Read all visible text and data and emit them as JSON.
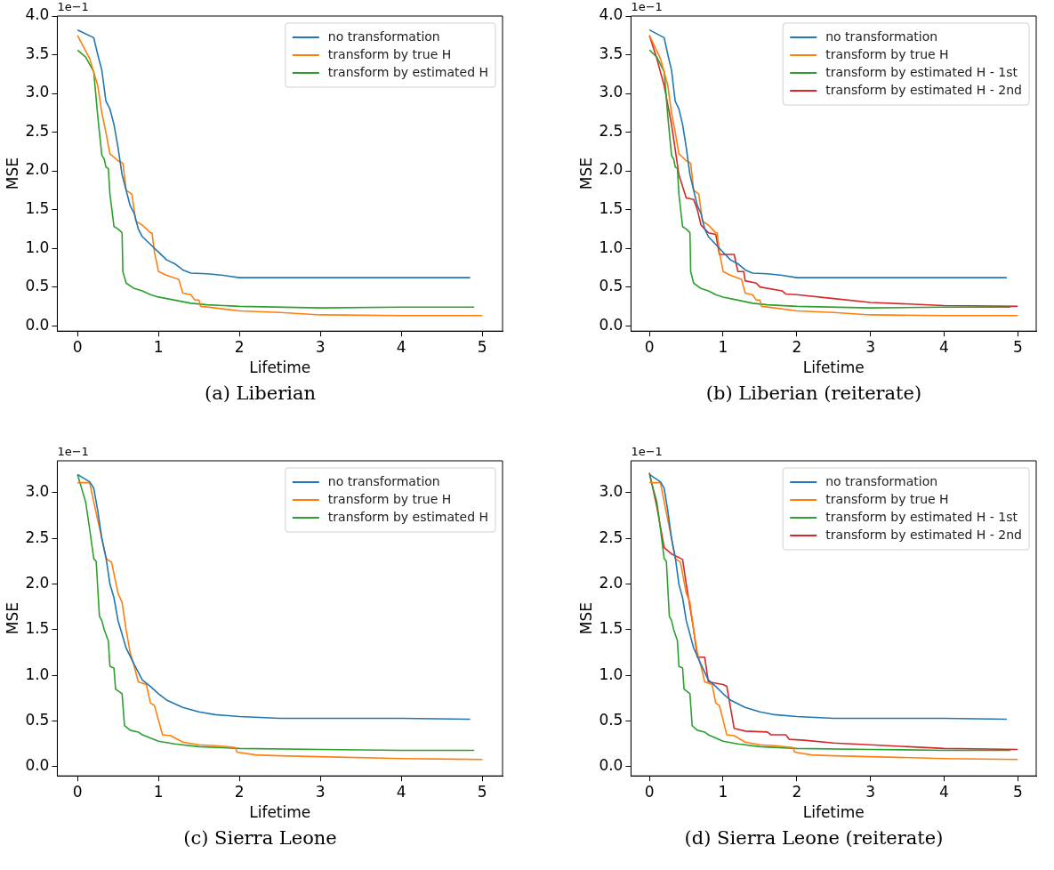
{
  "chart_data": [
    {
      "type": "line",
      "title": "(a) Liberian",
      "xlabel": "Lifetime",
      "ylabel": "MSE",
      "annotations": [
        "1e−1"
      ],
      "xlim": [
        -0.25,
        5.25
      ],
      "xticks": [
        0,
        1,
        2,
        3,
        4,
        5
      ],
      "ylim": [
        -0.07,
        4.0
      ],
      "yticks": [
        {
          "value": 0,
          "label": "0.0"
        },
        0.5,
        {
          "value": 1,
          "label": "1.0"
        },
        1.5,
        {
          "value": 2,
          "label": "2.0"
        },
        2.5,
        {
          "value": 3,
          "label": "3.0"
        },
        3.5,
        {
          "value": 4,
          "label": "4.0"
        }
      ],
      "grid": false,
      "legend": "top right",
      "marker": "none",
      "line_style": "solid",
      "series": [
        {
          "name": "no transformation",
          "color": "#1f77b4",
          "x": [
            0,
            0.2,
            0.25,
            0.3,
            0.35,
            0.4,
            0.45,
            0.5,
            0.55,
            0.6,
            0.65,
            0.7,
            0.75,
            0.8,
            0.9,
            1.0,
            1.1,
            1.2,
            1.3,
            1.4,
            1.6,
            1.8,
            2.0,
            2.5,
            3,
            4,
            4.85
          ],
          "values": [
            3.82,
            3.72,
            3.5,
            3.3,
            2.9,
            2.8,
            2.6,
            2.3,
            1.95,
            1.75,
            1.55,
            1.45,
            1.25,
            1.15,
            1.05,
            0.95,
            0.85,
            0.8,
            0.72,
            0.68,
            0.67,
            0.65,
            0.62,
            0.62,
            0.62,
            0.62,
            0.62
          ]
        },
        {
          "name": "transform by true H",
          "color": "#ff7f0e",
          "x": [
            0,
            0.15,
            0.25,
            0.3,
            0.35,
            0.4,
            0.5,
            0.56,
            0.6,
            0.67,
            0.72,
            0.8,
            0.9,
            0.92,
            0.95,
            1.0,
            1.1,
            1.25,
            1.3,
            1.4,
            1.45,
            1.5,
            1.52,
            1.7,
            2.0,
            2.5,
            3,
            4,
            5
          ],
          "values": [
            3.75,
            3.45,
            3.1,
            2.75,
            2.5,
            2.22,
            2.13,
            2.1,
            1.75,
            1.7,
            1.35,
            1.3,
            1.2,
            1.2,
            0.95,
            0.7,
            0.65,
            0.6,
            0.42,
            0.4,
            0.33,
            0.33,
            0.25,
            0.23,
            0.19,
            0.17,
            0.14,
            0.13,
            0.13
          ]
        },
        {
          "name": "transform by estimated H",
          "color": "#2ca02c",
          "x": [
            0,
            0.1,
            0.2,
            0.25,
            0.3,
            0.33,
            0.35,
            0.38,
            0.4,
            0.45,
            0.5,
            0.55,
            0.56,
            0.6,
            0.7,
            0.8,
            0.9,
            1.0,
            1.2,
            1.4,
            1.6,
            2.0,
            3,
            4,
            4.9
          ],
          "values": [
            3.56,
            3.47,
            3.28,
            2.7,
            2.2,
            2.15,
            2.05,
            2.03,
            1.7,
            1.28,
            1.25,
            1.2,
            0.7,
            0.55,
            0.48,
            0.45,
            0.4,
            0.37,
            0.33,
            0.29,
            0.27,
            0.25,
            0.23,
            0.24,
            0.24
          ]
        }
      ]
    },
    {
      "type": "line",
      "title": "(b) Liberian (reiterate)",
      "xlabel": "Lifetime",
      "ylabel": "MSE",
      "annotations": [
        "1e−1"
      ],
      "xlim": [
        -0.25,
        5.25
      ],
      "xticks": [
        0,
        1,
        2,
        3,
        4,
        5
      ],
      "ylim": [
        -0.07,
        4.0
      ],
      "yticks": [
        {
          "value": 0,
          "label": "0.0"
        },
        0.5,
        {
          "value": 1,
          "label": "1.0"
        },
        1.5,
        {
          "value": 2,
          "label": "2.0"
        },
        2.5,
        {
          "value": 3,
          "label": "3.0"
        },
        3.5,
        {
          "value": 4,
          "label": "4.0"
        }
      ],
      "grid": false,
      "legend": "top right",
      "marker": "none",
      "line_style": "solid",
      "series": [
        {
          "name": "no transformation",
          "color": "#1f77b4",
          "x": [
            0,
            0.2,
            0.25,
            0.3,
            0.35,
            0.4,
            0.45,
            0.5,
            0.55,
            0.6,
            0.65,
            0.7,
            0.75,
            0.8,
            0.9,
            1.0,
            1.1,
            1.2,
            1.3,
            1.4,
            1.6,
            1.8,
            2.0,
            2.5,
            3,
            4,
            4.85
          ],
          "values": [
            3.82,
            3.72,
            3.5,
            3.3,
            2.9,
            2.8,
            2.6,
            2.3,
            1.95,
            1.75,
            1.55,
            1.45,
            1.25,
            1.15,
            1.05,
            0.95,
            0.85,
            0.8,
            0.72,
            0.68,
            0.67,
            0.65,
            0.62,
            0.62,
            0.62,
            0.62,
            0.62
          ]
        },
        {
          "name": "transform by true H",
          "color": "#ff7f0e",
          "x": [
            0,
            0.15,
            0.25,
            0.3,
            0.35,
            0.4,
            0.5,
            0.56,
            0.6,
            0.67,
            0.72,
            0.8,
            0.9,
            0.92,
            0.95,
            1.0,
            1.1,
            1.25,
            1.3,
            1.4,
            1.45,
            1.5,
            1.52,
            1.7,
            2.0,
            2.5,
            3,
            4,
            5
          ],
          "values": [
            3.75,
            3.45,
            3.1,
            2.75,
            2.5,
            2.22,
            2.13,
            2.1,
            1.75,
            1.7,
            1.35,
            1.3,
            1.2,
            1.2,
            0.95,
            0.7,
            0.65,
            0.6,
            0.42,
            0.4,
            0.33,
            0.33,
            0.25,
            0.23,
            0.19,
            0.17,
            0.14,
            0.13,
            0.13
          ]
        },
        {
          "name": "transform by estimated H - 1st",
          "color": "#2ca02c",
          "x": [
            0,
            0.1,
            0.2,
            0.25,
            0.3,
            0.33,
            0.35,
            0.38,
            0.4,
            0.45,
            0.5,
            0.55,
            0.56,
            0.6,
            0.7,
            0.8,
            0.9,
            1.0,
            1.2,
            1.4,
            1.6,
            2.0,
            3,
            4,
            4.9
          ],
          "values": [
            3.56,
            3.47,
            3.28,
            2.7,
            2.2,
            2.15,
            2.05,
            2.03,
            1.7,
            1.28,
            1.25,
            1.2,
            0.7,
            0.55,
            0.48,
            0.45,
            0.4,
            0.37,
            0.33,
            0.29,
            0.27,
            0.25,
            0.23,
            0.24,
            0.24
          ]
        },
        {
          "name": "transform by estimated H - 2nd",
          "color": "#d62728",
          "x": [
            0,
            0.1,
            0.2,
            0.3,
            0.4,
            0.5,
            0.6,
            0.65,
            0.7,
            0.8,
            0.9,
            0.95,
            1.15,
            1.2,
            1.28,
            1.3,
            1.45,
            1.5,
            1.8,
            1.85,
            2.0,
            2.5,
            3,
            4,
            5
          ],
          "values": [
            3.75,
            3.45,
            3.1,
            2.6,
            1.95,
            1.65,
            1.63,
            1.5,
            1.3,
            1.2,
            1.18,
            0.92,
            0.92,
            0.7,
            0.7,
            0.58,
            0.55,
            0.5,
            0.45,
            0.41,
            0.4,
            0.35,
            0.3,
            0.26,
            0.25
          ]
        }
      ]
    },
    {
      "type": "line",
      "title": "(c) Sierra Leone",
      "xlabel": "Lifetime",
      "ylabel": "MSE",
      "annotations": [
        "1e−1"
      ],
      "xlim": [
        -0.25,
        5.25
      ],
      "xticks": [
        0,
        1,
        2,
        3,
        4,
        5
      ],
      "ylim": [
        -0.1,
        3.35
      ],
      "yticks": [
        {
          "value": 0,
          "label": "0.0"
        },
        0.5,
        {
          "value": 1,
          "label": "1.0"
        },
        1.5,
        {
          "value": 2,
          "label": "2.0"
        },
        2.5,
        {
          "value": 3,
          "label": "3.0"
        }
      ],
      "grid": false,
      "legend": "top right",
      "marker": "none",
      "line_style": "solid",
      "series": [
        {
          "name": "no transformation",
          "color": "#1f77b4",
          "x": [
            0,
            0.15,
            0.2,
            0.25,
            0.3,
            0.35,
            0.4,
            0.45,
            0.5,
            0.55,
            0.6,
            0.7,
            0.8,
            0.9,
            1.0,
            1.1,
            1.3,
            1.5,
            1.7,
            2.0,
            2.5,
            3,
            4,
            4.85
          ],
          "values": [
            3.2,
            3.12,
            3.05,
            2.8,
            2.5,
            2.3,
            2.0,
            1.85,
            1.6,
            1.45,
            1.3,
            1.12,
            0.95,
            0.88,
            0.8,
            0.73,
            0.65,
            0.6,
            0.57,
            0.55,
            0.53,
            0.53,
            0.53,
            0.52
          ]
        },
        {
          "name": "transform by true H",
          "color": "#ff7f0e",
          "x": [
            0,
            0.15,
            0.2,
            0.3,
            0.35,
            0.42,
            0.5,
            0.55,
            0.6,
            0.65,
            0.7,
            0.75,
            0.85,
            0.9,
            0.95,
            1.05,
            1.15,
            1.3,
            1.5,
            1.7,
            1.95,
            1.97,
            2.2,
            2.5,
            3,
            4,
            5
          ],
          "values": [
            3.11,
            3.11,
            2.9,
            2.5,
            2.28,
            2.24,
            1.9,
            1.8,
            1.5,
            1.25,
            1.1,
            0.93,
            0.9,
            0.7,
            0.67,
            0.35,
            0.34,
            0.27,
            0.24,
            0.23,
            0.21,
            0.16,
            0.13,
            0.12,
            0.11,
            0.09,
            0.08
          ]
        },
        {
          "name": "transform by estimated H",
          "color": "#2ca02c",
          "x": [
            0,
            0.1,
            0.15,
            0.2,
            0.23,
            0.27,
            0.3,
            0.33,
            0.38,
            0.4,
            0.45,
            0.47,
            0.55,
            0.58,
            0.65,
            0.75,
            0.8,
            1.0,
            1.2,
            1.5,
            2.0,
            3,
            4,
            4.9
          ],
          "values": [
            3.2,
            2.9,
            2.6,
            2.28,
            2.25,
            1.65,
            1.6,
            1.5,
            1.38,
            1.1,
            1.08,
            0.85,
            0.8,
            0.45,
            0.4,
            0.38,
            0.35,
            0.28,
            0.25,
            0.22,
            0.2,
            0.19,
            0.18,
            0.18
          ]
        }
      ]
    },
    {
      "type": "line",
      "title": "(d) Sierra Leone (reiterate)",
      "xlabel": "Lifetime",
      "ylabel": "MSE",
      "annotations": [
        "1e−1"
      ],
      "xlim": [
        -0.25,
        5.25
      ],
      "xticks": [
        0,
        1,
        2,
        3,
        4,
        5
      ],
      "ylim": [
        -0.1,
        3.35
      ],
      "yticks": [
        {
          "value": 0,
          "label": "0.0"
        },
        0.5,
        {
          "value": 1,
          "label": "1.0"
        },
        1.5,
        {
          "value": 2,
          "label": "2.0"
        },
        2.5,
        {
          "value": 3,
          "label": "3.0"
        }
      ],
      "grid": false,
      "legend": "top right",
      "marker": "none",
      "line_style": "solid",
      "series": [
        {
          "name": "no transformation",
          "color": "#1f77b4",
          "x": [
            0,
            0.15,
            0.2,
            0.25,
            0.3,
            0.35,
            0.4,
            0.45,
            0.5,
            0.55,
            0.6,
            0.7,
            0.8,
            0.9,
            1.0,
            1.1,
            1.3,
            1.5,
            1.7,
            2.0,
            2.5,
            3,
            4,
            4.85
          ],
          "values": [
            3.2,
            3.12,
            3.05,
            2.8,
            2.5,
            2.3,
            2.0,
            1.85,
            1.6,
            1.45,
            1.3,
            1.12,
            0.95,
            0.88,
            0.8,
            0.73,
            0.65,
            0.6,
            0.57,
            0.55,
            0.53,
            0.53,
            0.53,
            0.52
          ]
        },
        {
          "name": "transform by true H",
          "color": "#ff7f0e",
          "x": [
            0,
            0.15,
            0.2,
            0.3,
            0.35,
            0.42,
            0.5,
            0.55,
            0.6,
            0.65,
            0.7,
            0.75,
            0.85,
            0.9,
            0.95,
            1.05,
            1.15,
            1.3,
            1.5,
            1.7,
            1.95,
            1.97,
            2.2,
            2.5,
            3,
            4,
            5
          ],
          "values": [
            3.11,
            3.11,
            2.9,
            2.5,
            2.28,
            2.24,
            1.9,
            1.8,
            1.5,
            1.25,
            1.1,
            0.93,
            0.9,
            0.7,
            0.67,
            0.35,
            0.34,
            0.27,
            0.24,
            0.23,
            0.21,
            0.16,
            0.13,
            0.12,
            0.11,
            0.09,
            0.08
          ]
        },
        {
          "name": "transform by estimated H - 1st",
          "color": "#2ca02c",
          "x": [
            0,
            0.1,
            0.15,
            0.2,
            0.23,
            0.27,
            0.3,
            0.33,
            0.38,
            0.4,
            0.45,
            0.47,
            0.55,
            0.58,
            0.65,
            0.75,
            0.8,
            1.0,
            1.2,
            1.5,
            2.0,
            3,
            4,
            4.9
          ],
          "values": [
            3.2,
            2.9,
            2.6,
            2.28,
            2.25,
            1.65,
            1.6,
            1.5,
            1.38,
            1.1,
            1.08,
            0.85,
            0.8,
            0.45,
            0.4,
            0.38,
            0.35,
            0.28,
            0.25,
            0.22,
            0.2,
            0.19,
            0.18,
            0.18
          ]
        },
        {
          "name": "transform by estimated H - 2nd",
          "color": "#d62728",
          "x": [
            0,
            0.1,
            0.2,
            0.3,
            0.45,
            0.5,
            0.6,
            0.65,
            0.75,
            0.8,
            1.0,
            1.05,
            1.1,
            1.15,
            1.3,
            1.6,
            1.65,
            1.85,
            1.9,
            2.1,
            2.5,
            3,
            4,
            5
          ],
          "values": [
            3.22,
            2.85,
            2.4,
            2.33,
            2.27,
            2.0,
            1.5,
            1.2,
            1.2,
            0.93,
            0.9,
            0.88,
            0.65,
            0.42,
            0.39,
            0.38,
            0.35,
            0.35,
            0.3,
            0.29,
            0.26,
            0.24,
            0.2,
            0.19
          ]
        }
      ]
    }
  ]
}
